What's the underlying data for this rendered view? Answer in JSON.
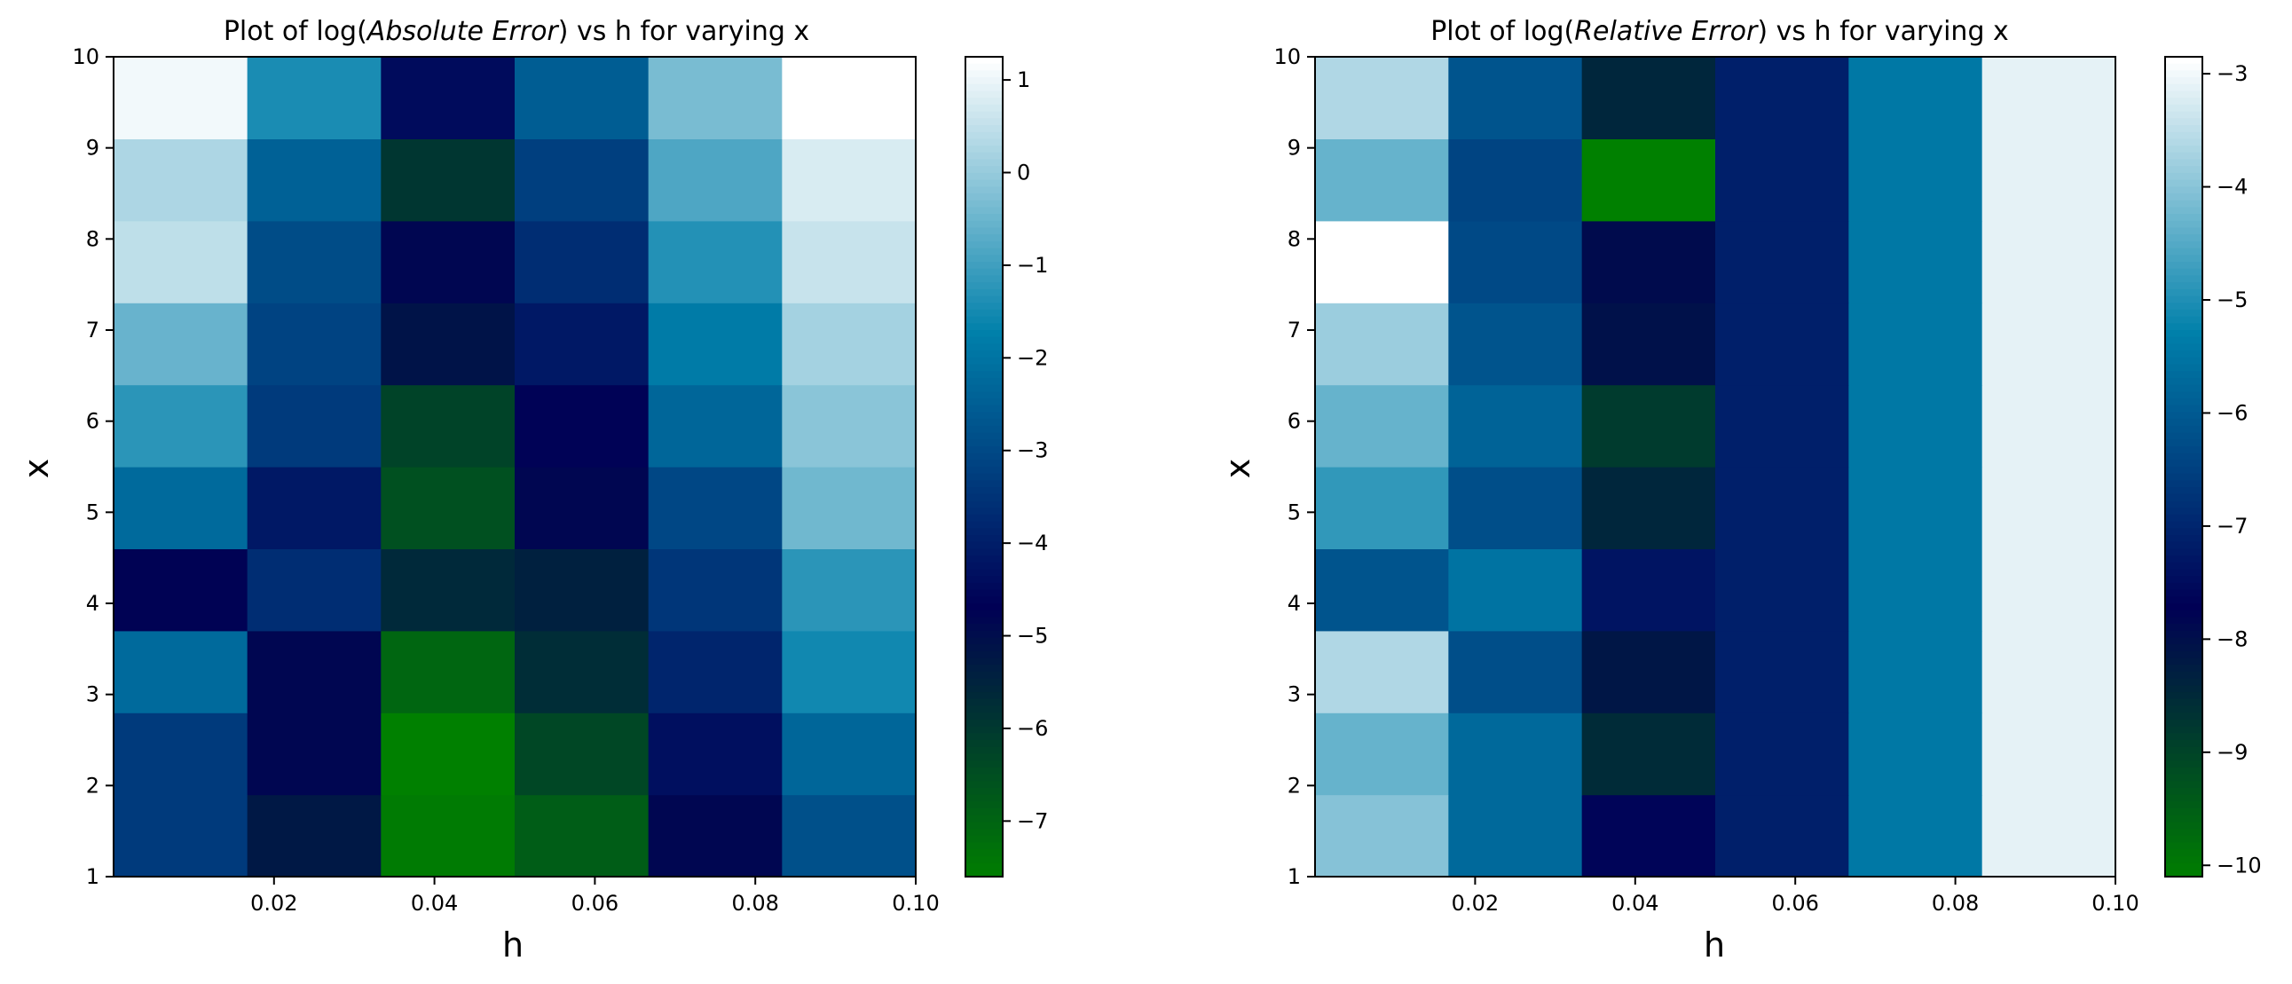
{
  "chart_data": [
    {
      "type": "heatmap",
      "title_prefix": "Plot of log(",
      "title_emph": "Absolute Error",
      "title_suffix": ") vs h for varying x",
      "xlabel": "h",
      "ylabel": "x",
      "x_ticks": [
        "0.02",
        "0.04",
        "0.06",
        "0.08",
        "0.10"
      ],
      "y_ticks": [
        "1",
        "2",
        "3",
        "4",
        "5",
        "6",
        "7",
        "8",
        "9",
        "10"
      ],
      "xlim": [
        0.0,
        0.1
      ],
      "ylim": [
        1,
        10
      ],
      "colormap": "ocean",
      "color_range": [
        -7.6,
        1.25
      ],
      "colorbar_ticks": [
        "1",
        "0",
        "−1",
        "−2",
        "−3",
        "−4",
        "−5",
        "−6",
        "−7"
      ],
      "colorbar_tick_values": [
        1,
        0,
        -1,
        -2,
        -3,
        -4,
        -5,
        -6,
        -7
      ],
      "h_bins": 6,
      "x_bins": 10,
      "values": [
        [
          -3.3,
          -5.2,
          -7.5,
          -6.8,
          -4.8,
          -2.8
        ],
        [
          -3.3,
          -4.8,
          -7.6,
          -6.3,
          -4.3,
          -2.3
        ],
        [
          -2.2,
          -4.8,
          -7.0,
          -5.7,
          -3.8,
          -1.5
        ],
        [
          -4.7,
          -3.6,
          -5.6,
          -5.4,
          -3.4,
          -1.2
        ],
        [
          -2.2,
          -4.1,
          -6.5,
          -4.8,
          -3.0,
          -0.4
        ],
        [
          -1.2,
          -3.3,
          -6.2,
          -4.6,
          -2.3,
          -0.1
        ],
        [
          -0.5,
          -3.1,
          -5.1,
          -4.1,
          -1.8,
          0.2
        ],
        [
          0.5,
          -2.9,
          -4.8,
          -3.6,
          -1.3,
          0.6
        ],
        [
          0.3,
          -2.4,
          -5.9,
          -3.2,
          -0.8,
          0.8
        ],
        [
          1.1,
          -1.4,
          -4.4,
          -2.5,
          -0.3,
          1.25
        ]
      ]
    },
    {
      "type": "heatmap",
      "title_prefix": "Plot of log(",
      "title_emph": "Relative Error",
      "title_suffix": ") vs h for varying x",
      "xlabel": "h",
      "ylabel": "x",
      "x_ticks": [
        "0.02",
        "0.04",
        "0.06",
        "0.08",
        "0.10"
      ],
      "y_ticks": [
        "1",
        "2",
        "3",
        "4",
        "5",
        "6",
        "7",
        "8",
        "9",
        "10"
      ],
      "xlim": [
        0.0,
        0.1
      ],
      "ylim": [
        1,
        10
      ],
      "colormap": "ocean",
      "color_range": [
        -10.1,
        -2.85
      ],
      "colorbar_ticks": [
        "−3",
        "−4",
        "−5",
        "−6",
        "−7",
        "−8",
        "−9",
        "−10"
      ],
      "colorbar_tick_values": [
        -3,
        -4,
        -5,
        -6,
        -7,
        -8,
        -9,
        -10
      ],
      "h_bins": 6,
      "x_bins": 10,
      "values": [
        [
          -4.0,
          -5.7,
          -7.6,
          -7.1,
          -5.4,
          -3.1
        ],
        [
          -4.3,
          -5.7,
          -8.5,
          -7.1,
          -5.4,
          -3.1
        ],
        [
          -3.6,
          -6.2,
          -8.1,
          -7.1,
          -5.4,
          -3.1
        ],
        [
          -6.1,
          -5.5,
          -7.3,
          -7.1,
          -5.4,
          -3.1
        ],
        [
          -4.8,
          -6.2,
          -8.4,
          -7.1,
          -5.4,
          -3.1
        ],
        [
          -4.3,
          -5.8,
          -8.8,
          -7.1,
          -5.4,
          -3.1
        ],
        [
          -3.8,
          -6.1,
          -8.0,
          -7.1,
          -5.4,
          -3.1
        ],
        [
          -2.85,
          -6.3,
          -7.9,
          -7.1,
          -5.4,
          -3.1
        ],
        [
          -4.3,
          -6.4,
          -10.1,
          -7.1,
          -5.4,
          -3.1
        ],
        [
          -3.6,
          -6.1,
          -8.4,
          -7.1,
          -5.4,
          -3.1
        ]
      ]
    }
  ]
}
